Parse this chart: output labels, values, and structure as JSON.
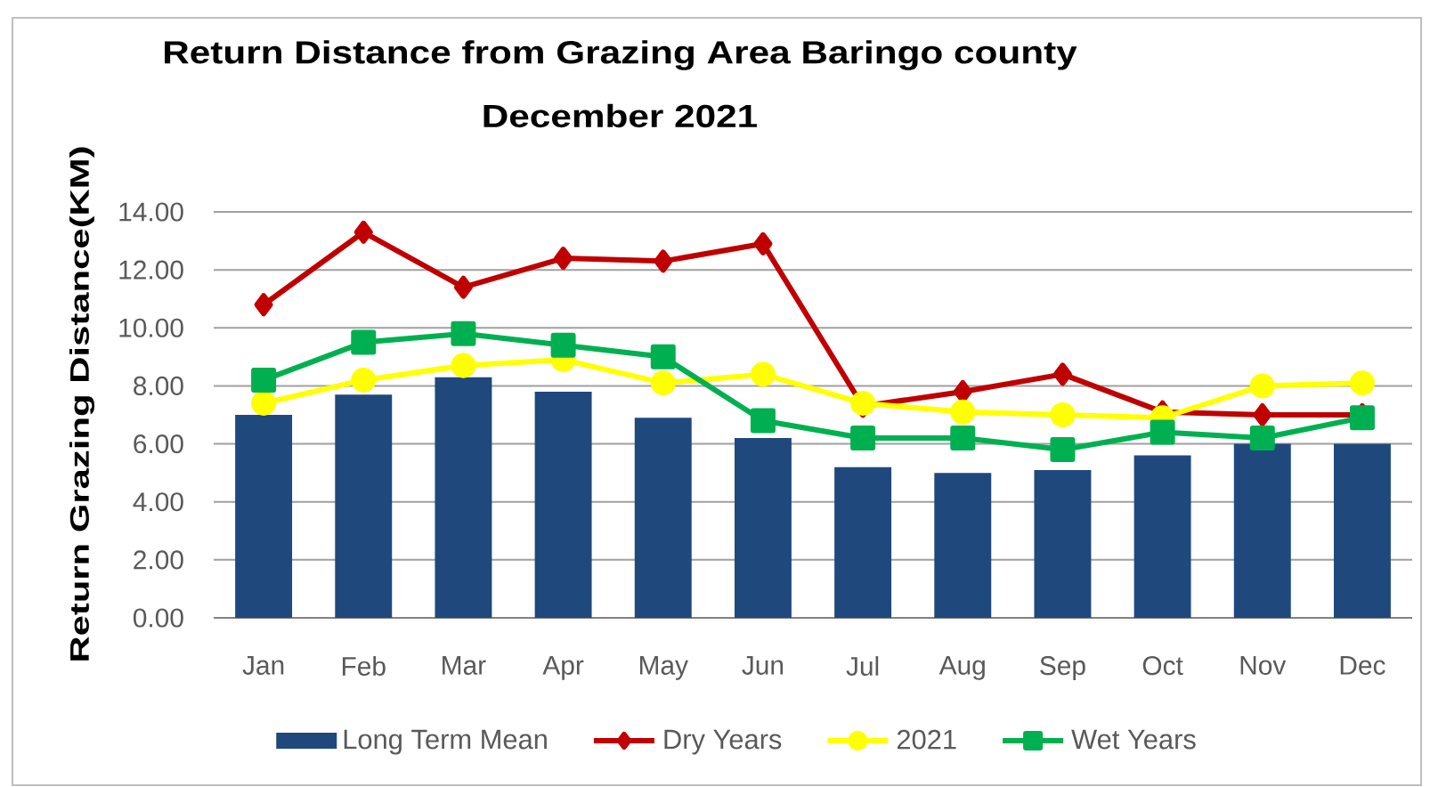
{
  "chart_data": {
    "type": "bar",
    "title": "Return Distance from Grazing Area Baringo county",
    "subtitle": "December 2021",
    "ylabel": "Return Grazing Distance(KM)",
    "categories": [
      "Jan",
      "Feb",
      "Mar",
      "Apr",
      "May",
      "Jun",
      "Jul",
      "Aug",
      "Sep",
      "Oct",
      "Nov",
      "Dec"
    ],
    "series": [
      {
        "name": "Long Term Mean",
        "color": "#1f497d",
        "values": [
          7.0,
          7.7,
          8.3,
          7.8,
          6.9,
          6.2,
          5.2,
          5.0,
          5.1,
          5.6,
          6.0,
          6.0
        ]
      },
      {
        "name": "Dry Years",
        "type": "line",
        "color": "#c00000",
        "marker": "diamond",
        "values": [
          10.8,
          13.3,
          11.4,
          12.4,
          12.3,
          12.9,
          7.3,
          7.8,
          8.4,
          7.1,
          7.0,
          7.0
        ]
      },
      {
        "name": "2021",
        "type": "line",
        "color": "#ffff00",
        "marker": "circle",
        "values": [
          7.4,
          8.2,
          8.7,
          8.9,
          8.1,
          8.4,
          7.4,
          7.1,
          7.0,
          6.9,
          8.0,
          8.1
        ]
      },
      {
        "name": "Wet Years",
        "type": "line",
        "color": "#00b050",
        "marker": "square",
        "values": [
          8.2,
          9.5,
          9.8,
          9.4,
          9.0,
          6.8,
          6.2,
          6.2,
          5.8,
          6.4,
          6.2,
          6.9
        ]
      }
    ],
    "ylim": [
      0,
      14
    ],
    "yticks": [
      {
        "value": 0,
        "label": "0.00"
      },
      {
        "value": 2,
        "label": "2.00"
      },
      {
        "value": 4,
        "label": "4.00"
      },
      {
        "value": 6,
        "label": "6.00"
      },
      {
        "value": 8,
        "label": "8.00"
      },
      {
        "value": 10,
        "label": "10.00"
      },
      {
        "value": 12,
        "label": "12.00"
      },
      {
        "value": 14,
        "label": "14.00"
      }
    ],
    "grid": "y",
    "legend": "bottom"
  }
}
